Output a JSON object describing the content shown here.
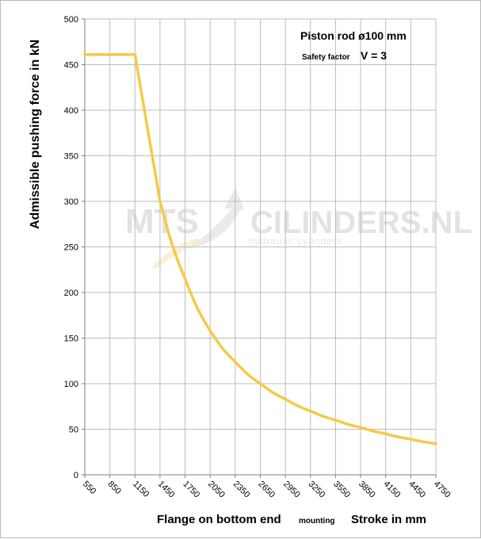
{
  "chart_data": {
    "type": "line",
    "title": "Piston rod ø100 mm",
    "subtitle_label": "Safety factor",
    "subtitle_value": "V = 3",
    "ylabel": "Admissible pushing  force in kN",
    "xlabel_main": "Flange on bottom end",
    "xlabel_small": "mounting",
    "xlabel_right": "Stroke in mm",
    "ylim": [
      0,
      500
    ],
    "yticks": [
      "0",
      "50",
      "100",
      "150",
      "200",
      "250",
      "300",
      "350",
      "400",
      "450",
      "500"
    ],
    "categories": [
      "550",
      "850",
      "1150",
      "1450",
      "1750",
      "2050",
      "2350",
      "2650",
      "2950",
      "3250",
      "3550",
      "3850",
      "4150",
      "4450",
      "4750"
    ],
    "series": [
      {
        "values": [
          461,
          461,
          461,
          300,
          215,
          158,
          124,
          100,
          83,
          70,
          60,
          52,
          45,
          39,
          34
        ],
        "color": "#f7c948"
      }
    ],
    "grid": true,
    "watermark": {
      "text_left": "MTS",
      "text_right": "CILINDERS.NL",
      "tagline": "hydraulic  cylinders"
    }
  }
}
